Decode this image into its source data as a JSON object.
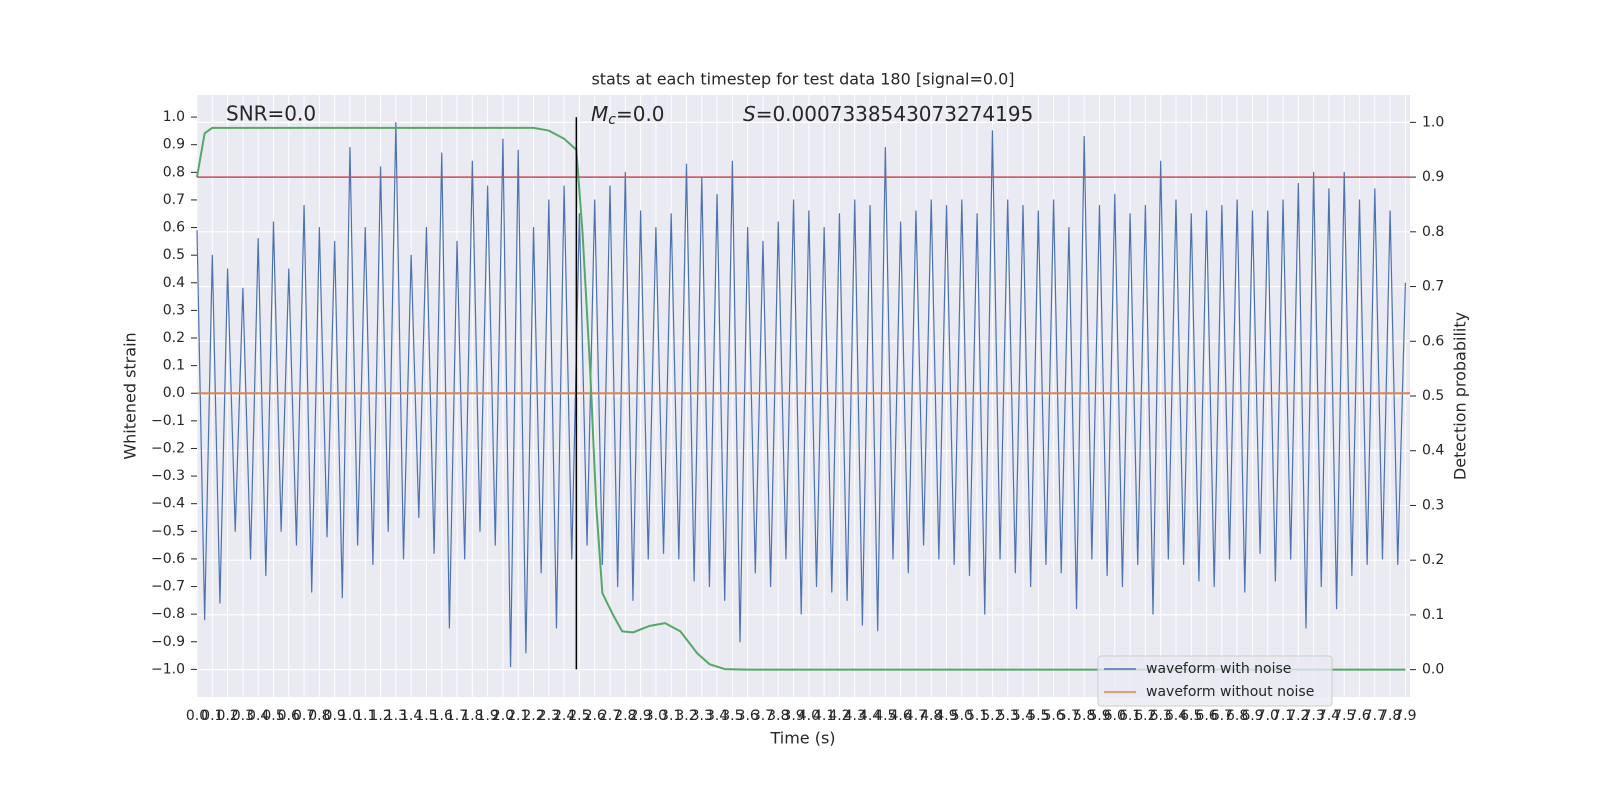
{
  "chart_data": {
    "type": "line",
    "title": "stats at each timestep for test data 180 [signal=0.0]",
    "x_label": "Time (s)",
    "y_label": "Whitened strain",
    "y2_label": "Detection probability",
    "annotations": [
      {
        "text": "SNR=0.0"
      },
      {
        "symbol": "M",
        "subscript": "c",
        "text": "=0.0"
      },
      {
        "symbol": "S",
        "text": "=0.0007338543073274195"
      }
    ],
    "grid": true,
    "legend": "lower right",
    "xlim": [
      0,
      7.93
    ],
    "ylim": [
      -1.1,
      1.08
    ],
    "y2lim": [
      -0.05,
      1.05
    ],
    "xticks": [
      {
        "value": 0,
        "label": "0.0"
      },
      0.1,
      0.2,
      0.3,
      0.4,
      0.5,
      0.6,
      0.7,
      0.8,
      0.9,
      {
        "value": 1,
        "label": "1.0"
      },
      1.1,
      1.2,
      1.3,
      1.4,
      1.5,
      1.6,
      1.7,
      1.8,
      1.9,
      {
        "value": 2,
        "label": "2.0"
      },
      2.1,
      2.2,
      2.3,
      2.4,
      2.5,
      2.6,
      2.7,
      2.8,
      2.9,
      {
        "value": 3,
        "label": "3.0"
      },
      3.1,
      3.2,
      3.3,
      3.4,
      3.5,
      3.6,
      3.7,
      3.8,
      3.9,
      {
        "value": 4,
        "label": "4.0"
      },
      4.1,
      4.2,
      4.3,
      4.4,
      4.5,
      4.6,
      4.7,
      4.8,
      4.9,
      {
        "value": 5,
        "label": "5.0"
      },
      5.1,
      5.2,
      5.3,
      5.4,
      5.5,
      5.6,
      5.7,
      5.8,
      5.9,
      {
        "value": 6,
        "label": "6.0"
      },
      6.1,
      6.2,
      6.3,
      6.4,
      6.5,
      6.6,
      6.7,
      6.8,
      6.9,
      {
        "value": 7,
        "label": "7.0"
      },
      7.1,
      7.2,
      7.3,
      7.4,
      7.5,
      7.6,
      7.7,
      7.8,
      7.9
    ],
    "yticks": [
      {
        "value": -1,
        "label": "−1.0"
      },
      {
        "value": -0.9,
        "label": "−0.9"
      },
      {
        "value": -0.8,
        "label": "−0.8"
      },
      {
        "value": -0.7,
        "label": "−0.7"
      },
      {
        "value": -0.6,
        "label": "−0.6"
      },
      {
        "value": -0.5,
        "label": "−0.5"
      },
      {
        "value": -0.4,
        "label": "−0.4"
      },
      {
        "value": -0.3,
        "label": "−0.3"
      },
      {
        "value": -0.2,
        "label": "−0.2"
      },
      {
        "value": -0.1,
        "label": "−0.1"
      },
      {
        "value": 0,
        "label": "0.0"
      },
      0.1,
      0.2,
      0.3,
      0.4,
      0.5,
      0.6,
      0.7,
      0.8,
      0.9,
      {
        "value": 1,
        "label": "1.0"
      }
    ],
    "y2ticks": [
      {
        "value": 0,
        "label": "0.0"
      },
      0.1,
      0.2,
      0.3,
      0.4,
      0.5,
      0.6,
      0.7,
      0.8,
      0.9,
      {
        "value": 1,
        "label": "1.0"
      }
    ],
    "threshold": {
      "value": 0.9,
      "axis": "y2",
      "color": "#c44e52"
    },
    "vline": {
      "x": 2.48,
      "color": "#000000"
    },
    "series": [
      {
        "name": "waveform with noise",
        "color": "#4c72b0",
        "x": [
          0,
          0.05,
          0.1,
          0.15,
          0.2,
          0.25,
          0.3,
          0.35,
          0.4,
          0.45,
          0.5,
          0.55,
          0.6,
          0.65,
          0.7,
          0.75,
          0.8,
          0.85,
          0.9,
          0.95,
          1,
          1.05,
          1.1,
          1.15,
          1.2,
          1.25,
          1.3,
          1.35,
          1.4,
          1.45,
          1.5,
          1.55,
          1.6,
          1.65,
          1.7,
          1.75,
          1.8,
          1.85,
          1.9,
          1.95,
          2,
          2.05,
          2.1,
          2.15,
          2.2,
          2.25,
          2.3,
          2.35,
          2.4,
          2.45,
          2.5,
          2.55,
          2.6,
          2.65,
          2.7,
          2.75,
          2.8,
          2.85,
          2.9,
          2.95,
          3,
          3.05,
          3.1,
          3.15,
          3.2,
          3.25,
          3.3,
          3.35,
          3.4,
          3.45,
          3.5,
          3.55,
          3.6,
          3.65,
          3.7,
          3.75,
          3.8,
          3.85,
          3.9,
          3.95,
          4,
          4.05,
          4.1,
          4.15,
          4.2,
          4.25,
          4.3,
          4.35,
          4.4,
          4.45,
          4.5,
          4.55,
          4.6,
          4.65,
          4.7,
          4.75,
          4.8,
          4.85,
          4.9,
          4.95,
          5,
          5.05,
          5.1,
          5.15,
          5.2,
          5.25,
          5.3,
          5.35,
          5.4,
          5.45,
          5.5,
          5.55,
          5.6,
          5.65,
          5.7,
          5.75,
          5.8,
          5.85,
          5.9,
          5.95,
          6,
          6.05,
          6.1,
          6.15,
          6.2,
          6.25,
          6.3,
          6.35,
          6.4,
          6.45,
          6.5,
          6.55,
          6.6,
          6.65,
          6.7,
          6.75,
          6.8,
          6.85,
          6.9,
          6.95,
          7,
          7.05,
          7.1,
          7.15,
          7.2,
          7.25,
          7.3,
          7.35,
          7.4,
          7.45,
          7.5,
          7.55,
          7.6,
          7.65,
          7.7,
          7.75,
          7.8,
          7.85,
          7.9
        ],
        "values": [
          0.59,
          -0.82,
          0.5,
          -0.76,
          0.45,
          -0.5,
          0.38,
          -0.6,
          0.56,
          -0.66,
          0.62,
          -0.5,
          0.45,
          -0.55,
          0.68,
          -0.72,
          0.6,
          -0.52,
          0.55,
          -0.74,
          0.89,
          -0.55,
          0.6,
          -0.62,
          0.82,
          -0.5,
          0.98,
          -0.6,
          0.5,
          -0.45,
          0.6,
          -0.58,
          0.87,
          -0.85,
          0.55,
          -0.6,
          0.84,
          -0.5,
          0.75,
          -0.55,
          0.92,
          -0.99,
          0.88,
          -0.94,
          0.6,
          -0.65,
          0.7,
          -0.85,
          0.75,
          -0.6,
          0.65,
          -0.55,
          0.7,
          -0.62,
          0.75,
          -0.7,
          0.8,
          -0.75,
          0.66,
          -0.6,
          0.6,
          -0.58,
          0.65,
          -0.6,
          0.83,
          -0.68,
          0.78,
          -0.7,
          0.72,
          -0.75,
          0.84,
          -0.9,
          0.6,
          -0.65,
          0.55,
          -0.7,
          0.62,
          -0.6,
          0.7,
          -0.8,
          0.66,
          -0.7,
          0.6,
          -0.72,
          0.65,
          -0.75,
          0.7,
          -0.84,
          0.68,
          -0.86,
          0.89,
          -0.6,
          0.62,
          -0.65,
          0.66,
          -0.55,
          0.7,
          -0.6,
          0.68,
          -0.62,
          0.7,
          -0.66,
          0.65,
          -0.8,
          0.95,
          -0.6,
          0.7,
          -0.65,
          0.68,
          -0.7,
          0.66,
          -0.62,
          0.7,
          -0.65,
          0.6,
          -0.78,
          0.93,
          -0.6,
          0.68,
          -0.66,
          0.72,
          -0.7,
          0.65,
          -0.62,
          0.68,
          -0.8,
          0.84,
          -0.6,
          0.7,
          -0.62,
          0.65,
          -0.68,
          0.66,
          -0.7,
          0.68,
          -0.6,
          0.7,
          -0.72,
          0.66,
          -0.58,
          0.66,
          -0.68,
          0.7,
          -0.6,
          0.76,
          -0.85,
          0.8,
          -0.7,
          0.74,
          -0.78,
          0.8,
          -0.66,
          0.7,
          -0.62,
          0.74,
          -0.6,
          0.66,
          -0.62,
          0.4
        ]
      },
      {
        "name": "waveform without noise",
        "color": "#dd8452",
        "x": [
          0,
          7.93
        ],
        "values": [
          0,
          0
        ]
      },
      {
        "color": "#55a868",
        "axis": "y2",
        "x": [
          0,
          0.05,
          0.1,
          0.2,
          0.5,
          1,
          1.5,
          2,
          2.2,
          2.3,
          2.4,
          2.48,
          2.52,
          2.57,
          2.61,
          2.65,
          2.72,
          2.78,
          2.85,
          2.96,
          3.06,
          3.16,
          3.27,
          3.35,
          3.45,
          3.6,
          7.9
        ],
        "values": [
          0.9,
          0.98,
          0.99,
          0.99,
          0.99,
          0.99,
          0.99,
          0.99,
          0.99,
          0.985,
          0.97,
          0.95,
          0.8,
          0.55,
          0.3,
          0.14,
          0.1,
          0.07,
          0.068,
          0.08,
          0.085,
          0.07,
          0.03,
          0.01,
          0.001,
          0,
          0
        ]
      }
    ]
  }
}
